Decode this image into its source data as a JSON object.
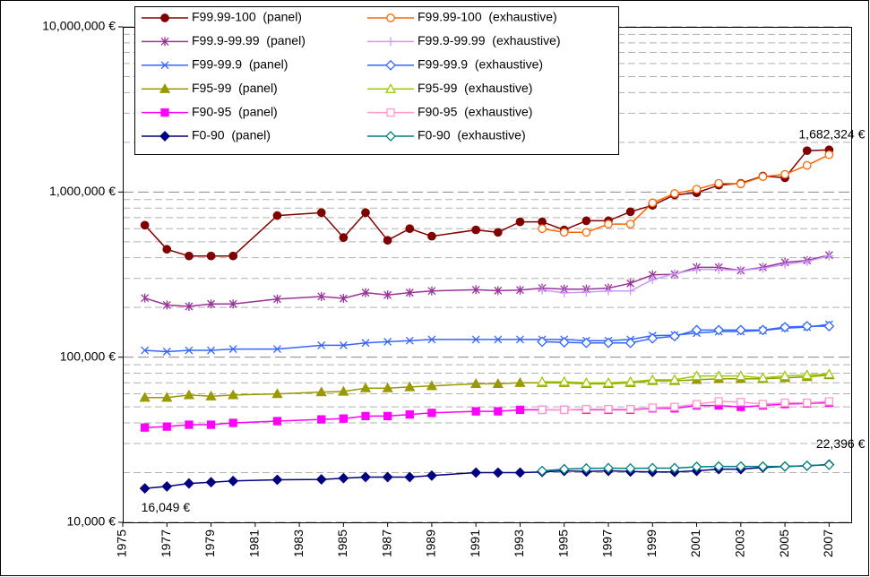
{
  "chart_data": {
    "type": "line",
    "log_y": true,
    "grid": true,
    "xlim": [
      1975,
      2008
    ],
    "ylim": [
      10000,
      10000000
    ],
    "xticks": [
      1975,
      1977,
      1979,
      1981,
      1983,
      1985,
      1987,
      1989,
      1991,
      1993,
      1995,
      1997,
      1999,
      2001,
      2003,
      2005,
      2007
    ],
    "yticks": [
      {
        "value": 10000,
        "label": "10,000 €"
      },
      {
        "value": 100000,
        "label": "100,000 €"
      },
      {
        "value": 1000000,
        "label": "1,000,000 €"
      },
      {
        "value": 10000000,
        "label": "10,000,000 €"
      }
    ],
    "yminorticks": [
      20000,
      30000,
      40000,
      50000,
      60000,
      70000,
      80000,
      90000,
      200000,
      300000,
      400000,
      500000,
      600000,
      700000,
      800000,
      900000,
      2000000,
      3000000,
      4000000,
      5000000,
      6000000,
      7000000,
      8000000,
      9000000
    ],
    "legend": "top-left",
    "series": [
      {
        "name": "F99.99-100  (panel)",
        "color": "#800000",
        "marker": "circle",
        "filled": true,
        "x": [
          1976,
          1977,
          1978,
          1979,
          1980,
          1982,
          1984,
          1985,
          1986,
          1987,
          1988,
          1989,
          1991,
          1992,
          1993,
          1994,
          1995,
          1996,
          1997,
          1998,
          1999,
          2000,
          2001,
          2002,
          2003,
          2004,
          2005,
          2006,
          2007
        ],
        "values": [
          630000,
          450000,
          410000,
          410000,
          410000,
          720000,
          750000,
          530000,
          750000,
          510000,
          600000,
          540000,
          590000,
          570000,
          660000,
          660000,
          590000,
          670000,
          670000,
          760000,
          830000,
          960000,
          990000,
          1100000,
          1130000,
          1250000,
          1220000,
          1780000,
          1800000
        ]
      },
      {
        "name": "F99.99-100  (exhaustive)",
        "color": "#ff6600",
        "marker": "circle",
        "filled": false,
        "x": [
          1994,
          1995,
          1996,
          1997,
          1998,
          1999,
          2000,
          2001,
          2002,
          2003,
          2004,
          2005,
          2006,
          2007
        ],
        "values": [
          600000,
          570000,
          570000,
          640000,
          640000,
          860000,
          980000,
          1040000,
          1130000,
          1120000,
          1240000,
          1280000,
          1450000,
          1682324
        ],
        "value_labels": [
          null,
          null,
          null,
          null,
          null,
          null,
          null,
          null,
          null,
          null,
          null,
          null,
          null,
          "1,682,324 €"
        ]
      },
      {
        "name": "F99.9-99.99  (panel)",
        "color": "#993399",
        "marker": "asterisk",
        "filled": true,
        "x": [
          1976,
          1977,
          1978,
          1979,
          1980,
          1982,
          1984,
          1985,
          1986,
          1987,
          1988,
          1989,
          1991,
          1992,
          1993,
          1994,
          1995,
          1996,
          1997,
          1998,
          1999,
          2000,
          2001,
          2002,
          2003,
          2004,
          2005,
          2006,
          2007
        ],
        "values": [
          228000,
          207000,
          203000,
          210000,
          210000,
          225000,
          233000,
          227000,
          246000,
          238000,
          246000,
          252000,
          256000,
          253000,
          255000,
          262000,
          258000,
          258000,
          262000,
          280000,
          315000,
          318000,
          350000,
          350000,
          335000,
          350000,
          375000,
          385000,
          415000
        ]
      },
      {
        "name": "F99.9-99.99  (exhaustive)",
        "color": "#cc99ff",
        "marker": "plus",
        "filled": true,
        "x": [
          1994,
          1995,
          1996,
          1997,
          1998,
          1999,
          2000,
          2001,
          2002,
          2003,
          2004,
          2005,
          2006,
          2007
        ],
        "values": [
          255000,
          245000,
          248000,
          252000,
          252000,
          295000,
          320000,
          340000,
          340000,
          335000,
          345000,
          365000,
          380000,
          410000
        ]
      },
      {
        "name": "F99-99.9  (panel)",
        "color": "#3366ff",
        "marker": "x",
        "filled": true,
        "x": [
          1976,
          1977,
          1978,
          1979,
          1980,
          1982,
          1984,
          1985,
          1986,
          1987,
          1988,
          1989,
          1991,
          1992,
          1993,
          1994,
          1995,
          1996,
          1997,
          1998,
          1999,
          2000,
          2001,
          2002,
          2003,
          2004,
          2005,
          2006,
          2007
        ],
        "values": [
          110000,
          108000,
          110000,
          110000,
          112000,
          112000,
          118000,
          118000,
          122000,
          124000,
          126000,
          128000,
          128000,
          128000,
          128000,
          128000,
          128000,
          126000,
          126000,
          128000,
          135000,
          136000,
          140000,
          143000,
          143000,
          145000,
          150000,
          152000,
          158000
        ]
      },
      {
        "name": "F99-99.9  (exhaustive)",
        "color": "#3366ff",
        "marker": "diamond",
        "filled": false,
        "x": [
          1994,
          1995,
          1996,
          1997,
          1998,
          1999,
          2000,
          2001,
          2002,
          2003,
          2004,
          2005,
          2006,
          2007
        ],
        "values": [
          124000,
          123000,
          122000,
          122000,
          122000,
          130000,
          134000,
          146000,
          146000,
          146000,
          146000,
          152000,
          154000,
          154000
        ]
      },
      {
        "name": "F95-99  (panel)",
        "color": "#999900",
        "marker": "triangle",
        "filled": true,
        "x": [
          1976,
          1977,
          1978,
          1979,
          1980,
          1982,
          1984,
          1985,
          1986,
          1987,
          1988,
          1989,
          1991,
          1992,
          1993,
          1994,
          1995,
          1996,
          1997,
          1998,
          1999,
          2000,
          2001,
          2002,
          2003,
          2004,
          2005,
          2006,
          2007
        ],
        "values": [
          57000,
          57000,
          59000,
          58000,
          59000,
          60000,
          61500,
          62000,
          65000,
          65000,
          66000,
          67000,
          69000,
          69000,
          70000,
          70000,
          70000,
          69000,
          69000,
          70000,
          72000,
          72000,
          73000,
          74000,
          74000,
          74000,
          75000,
          76000,
          78000
        ]
      },
      {
        "name": "F95-99  (exhaustive)",
        "color": "#99cc00",
        "marker": "triangle",
        "filled": false,
        "x": [
          1994,
          1995,
          1996,
          1997,
          1998,
          1999,
          2000,
          2001,
          2002,
          2003,
          2004,
          2005,
          2006,
          2007
        ],
        "values": [
          71000,
          71000,
          70000,
          70000,
          71000,
          73000,
          73000,
          77000,
          77000,
          77000,
          75000,
          77000,
          78000,
          79000
        ]
      },
      {
        "name": "F90-95  (panel)",
        "color": "#ff00ff",
        "marker": "square",
        "filled": true,
        "x": [
          1976,
          1977,
          1978,
          1979,
          1980,
          1982,
          1984,
          1985,
          1986,
          1987,
          1988,
          1989,
          1991,
          1992,
          1993,
          1994,
          1995,
          1996,
          1997,
          1998,
          1999,
          2000,
          2001,
          2002,
          2003,
          2004,
          2005,
          2006,
          2007
        ],
        "values": [
          37500,
          38000,
          39000,
          39000,
          40000,
          41000,
          42000,
          42500,
          44000,
          44000,
          45000,
          46000,
          47000,
          47000,
          48000,
          48000,
          48000,
          48000,
          48000,
          48000,
          49000,
          49000,
          51000,
          51000,
          50000,
          51000,
          52000,
          52500,
          53000
        ]
      },
      {
        "name": "F90-95  (exhaustive)",
        "color": "#ff99cc",
        "marker": "square",
        "filled": false,
        "x": [
          1994,
          1995,
          1996,
          1997,
          1998,
          1999,
          2000,
          2001,
          2002,
          2003,
          2004,
          2005,
          2006,
          2007
        ],
        "values": [
          48000,
          48000,
          48500,
          48500,
          48500,
          49500,
          50000,
          52000,
          54000,
          53500,
          52000,
          53000,
          53000,
          54000
        ]
      },
      {
        "name": "F0-90  (panel)",
        "color": "#000080",
        "marker": "diamond",
        "filled": true,
        "x": [
          1976,
          1977,
          1978,
          1979,
          1980,
          1982,
          1984,
          1985,
          1986,
          1987,
          1988,
          1989,
          1991,
          1992,
          1993,
          1994,
          1995,
          1996,
          1997,
          1998,
          1999,
          2000,
          2001,
          2002,
          2003,
          2004,
          2005,
          2006,
          2007
        ],
        "values": [
          16049,
          16500,
          17200,
          17500,
          17800,
          18100,
          18200,
          18500,
          18800,
          18800,
          18800,
          19200,
          20000,
          20000,
          20000,
          20200,
          20500,
          20300,
          20500,
          20300,
          20200,
          20200,
          20500,
          21000,
          21000,
          21500,
          21800,
          22000,
          22396
        ],
        "value_labels": [
          "16,049 €",
          null,
          null,
          null,
          null,
          null,
          null,
          null,
          null,
          null,
          null,
          null,
          null,
          null,
          null,
          null,
          null,
          null,
          null,
          null,
          null,
          null,
          null,
          null,
          null,
          null,
          null,
          null,
          "22,396 €"
        ]
      },
      {
        "name": "F0-90  (exhaustive)",
        "color": "#008080",
        "marker": "diamond",
        "filled": false,
        "x": [
          1994,
          1995,
          1996,
          1997,
          1998,
          1999,
          2000,
          2001,
          2002,
          2003,
          2004,
          2005,
          2006,
          2007
        ],
        "values": [
          20500,
          21000,
          21200,
          21300,
          21200,
          21300,
          21300,
          21700,
          21800,
          21800,
          21800,
          21800,
          22000,
          22300
        ]
      }
    ]
  }
}
